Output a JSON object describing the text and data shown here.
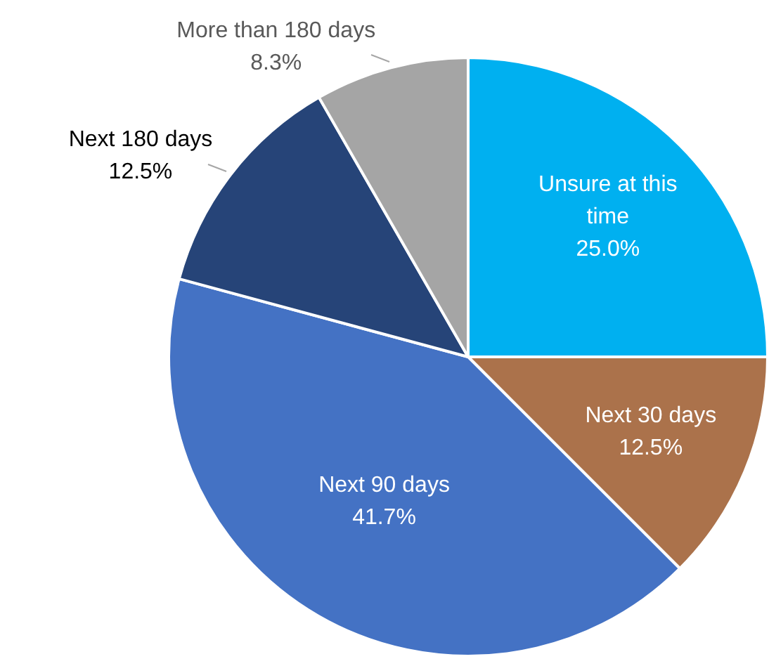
{
  "chart_data": {
    "type": "pie",
    "categories": [
      "Unsure at this time",
      "Next 30 days",
      "Next 90 days",
      "Next 180 days",
      "More than 180 days"
    ],
    "values": [
      25.0,
      12.5,
      41.7,
      12.5,
      8.3
    ],
    "value_labels": [
      "25.0%",
      "12.5%",
      "41.7%",
      "12.5%",
      "8.3%"
    ],
    "colors": [
      "#00b0f0",
      "#ab724b",
      "#4472c4",
      "#264478",
      "#a5a5a5"
    ],
    "legend": false
  }
}
